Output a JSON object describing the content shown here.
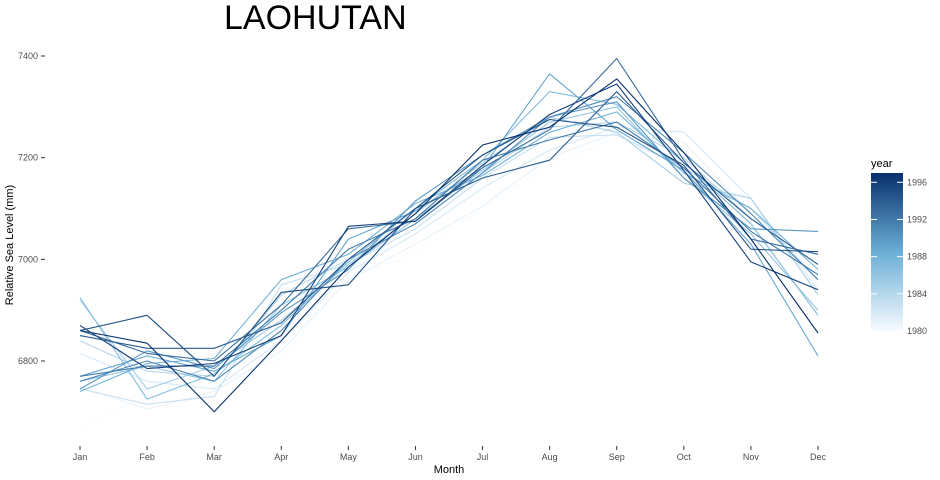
{
  "chart_data": {
    "type": "line",
    "title": "LAOHUTAN",
    "xlabel": "Month",
    "ylabel": "Relative Sea Level (mm)",
    "categories": [
      "Jan",
      "Feb",
      "Mar",
      "Apr",
      "May",
      "Jun",
      "Jul",
      "Aug",
      "Sep",
      "Oct",
      "Nov",
      "Dec"
    ],
    "ylim": [
      6650,
      7420
    ],
    "yticks": [
      6800,
      7000,
      7200,
      7400
    ],
    "grid": false,
    "legend": {
      "title": "year",
      "position": "right",
      "type": "colorbar",
      "range": [
        1980,
        1997
      ],
      "ticks": [
        1980,
        1984,
        1988,
        1992,
        1996
      ],
      "low_color": "#f7fbff",
      "high_color": "#08306b"
    },
    "series": [
      {
        "year": 1980,
        "values": [
          6665,
          6735,
          6755,
          6805,
          6965,
          7010,
          7100,
          7185,
          7240,
          7255,
          7110,
          6950
        ]
      },
      {
        "year": 1981,
        "values": [
          6750,
          6705,
          6740,
          6820,
          6960,
          7030,
          7105,
          7200,
          7250,
          7230,
          7090,
          6960
        ]
      },
      {
        "year": 1982,
        "values": [
          6815,
          6760,
          6745,
          6840,
          6975,
          7050,
          7140,
          7215,
          7260,
          7250,
          7120,
          6940
        ]
      },
      {
        "year": 1983,
        "values": [
          6745,
          6715,
          6730,
          6950,
          6990,
          7060,
          7160,
          7240,
          7245,
          7180,
          7100,
          6960
        ]
      },
      {
        "year": 1984,
        "values": [
          6840,
          6780,
          6770,
          6930,
          7000,
          7070,
          7170,
          7260,
          7270,
          7200,
          7080,
          6990
        ]
      },
      {
        "year": 1985,
        "values": [
          6920,
          6745,
          6790,
          6880,
          6990,
          7090,
          7190,
          7280,
          7250,
          7150,
          7120,
          6930
        ]
      },
      {
        "year": 1986,
        "values": [
          6760,
          6790,
          6760,
          6910,
          6985,
          7080,
          7175,
          7270,
          7300,
          7160,
          7050,
          6900
        ]
      },
      {
        "year": 1987,
        "values": [
          6925,
          6725,
          6775,
          6870,
          6995,
          7100,
          7195,
          7330,
          7305,
          7190,
          7070,
          6890
        ]
      },
      {
        "year": 1988,
        "values": [
          6740,
          6795,
          6805,
          6960,
          7010,
          7110,
          7165,
          7250,
          7290,
          7170,
          7100,
          6980
        ]
      },
      {
        "year": 1989,
        "values": [
          6770,
          6810,
          6780,
          6850,
          7040,
          7095,
          7180,
          7365,
          7255,
          7175,
          7030,
          6810
        ]
      },
      {
        "year": 1990,
        "values": [
          6745,
          6820,
          6785,
          6895,
          6980,
          7115,
          7205,
          7280,
          7310,
          7160,
          7060,
          7055
        ]
      },
      {
        "year": 1991,
        "values": [
          6760,
          6800,
          6760,
          6860,
          7000,
          7070,
          7170,
          7280,
          7320,
          7210,
          7090,
          6960
        ]
      },
      {
        "year": 1992,
        "values": [
          6770,
          6790,
          6790,
          6900,
          7020,
          7080,
          7195,
          7235,
          7270,
          7180,
          7055,
          6970
        ]
      },
      {
        "year": 1993,
        "values": [
          6860,
          6815,
          6800,
          6910,
          7060,
          7075,
          7180,
          7255,
          7395,
          7195,
          7040,
          7010
        ]
      },
      {
        "year": 1994,
        "values": [
          6850,
          6825,
          6825,
          6875,
          7000,
          7100,
          7160,
          7195,
          7330,
          7190,
          7080,
          6990
        ]
      },
      {
        "year": 1995,
        "values": [
          6860,
          6890,
          6770,
          6935,
          6950,
          7100,
          7205,
          7275,
          7260,
          7185,
          7020,
          7015
        ]
      },
      {
        "year": 1996,
        "values": [
          6870,
          6785,
          6795,
          6850,
          7065,
          7075,
          7185,
          7285,
          7345,
          7175,
          6995,
          6940
        ]
      },
      {
        "year": 1997,
        "values": [
          6860,
          6835,
          6700,
          6840,
          6985,
          7090,
          7225,
          7260,
          7355,
          7210,
          7040,
          6855
        ]
      }
    ]
  }
}
